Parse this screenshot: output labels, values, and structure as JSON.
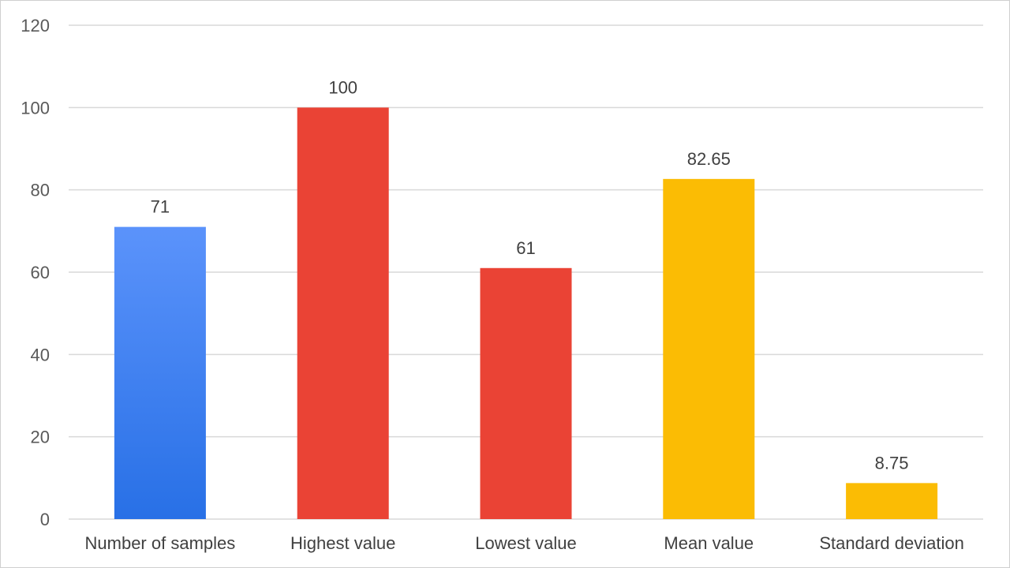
{
  "chart_data": {
    "type": "bar",
    "title": "",
    "xlabel": "",
    "ylabel": "",
    "categories": [
      "Number of samples",
      "Highest value",
      "Lowest value",
      "Mean value",
      "Standard deviation"
    ],
    "values": [
      71,
      100,
      61,
      82.65,
      8.75
    ],
    "data_labels": [
      "71",
      "100",
      "61",
      "82.65",
      "8.75"
    ],
    "ylim": [
      0,
      120
    ],
    "yticks": [
      0,
      20,
      40,
      60,
      80,
      100,
      120
    ],
    "grid": true,
    "legend": "none",
    "bar_colors": [
      {
        "top": "#5b93fb",
        "bottom": "#2870e6"
      },
      {
        "top": "#ea4335",
        "bottom": "#ea4335"
      },
      {
        "top": "#ea4335",
        "bottom": "#ea4335"
      },
      {
        "top": "#fbbc04",
        "bottom": "#fbbc04"
      },
      {
        "top": "#fbbc04",
        "bottom": "#fbbc04"
      }
    ]
  }
}
